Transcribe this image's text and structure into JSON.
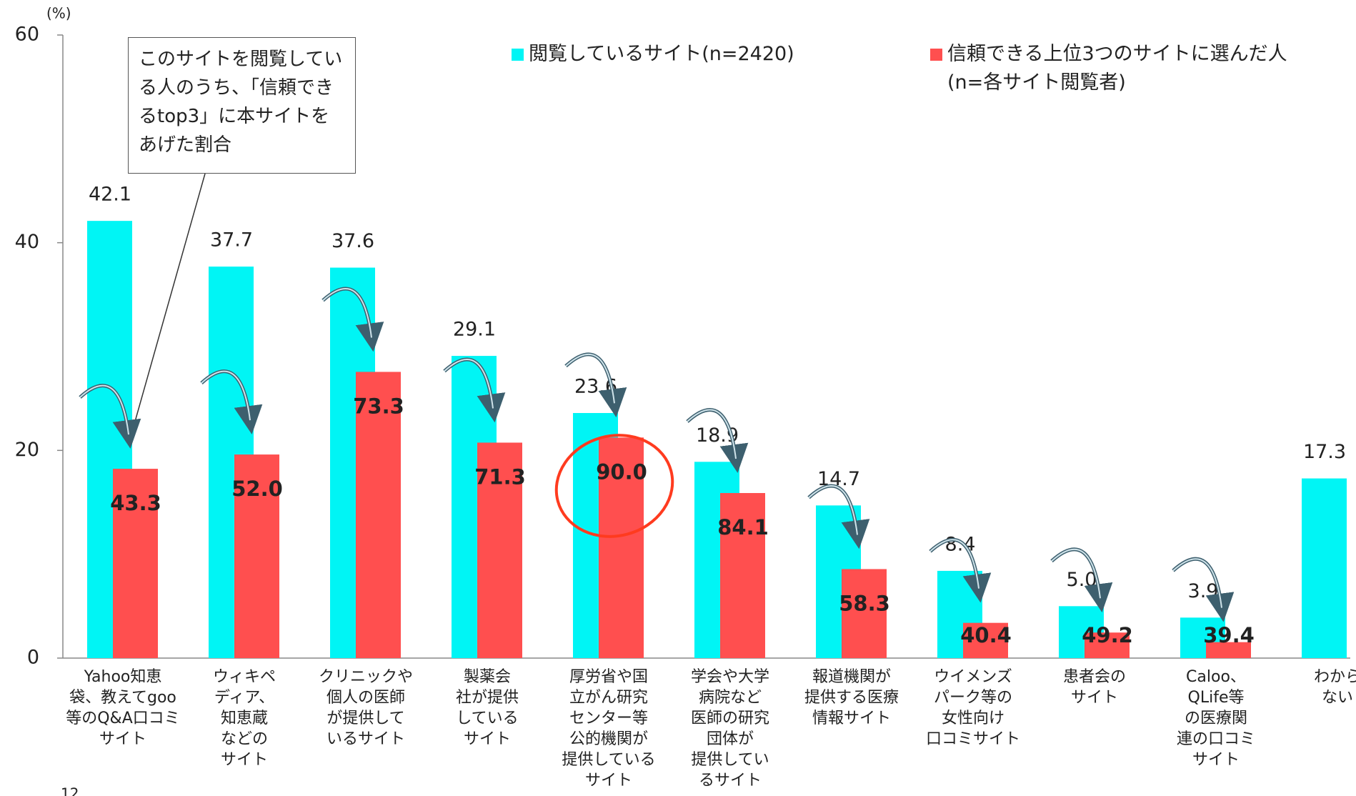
{
  "chart_data": {
    "type": "bar",
    "y_unit": "(%)",
    "annotation": "このサイトを閲覧している人のうち、「信頼できるtop3」に本サイトをあげた割合",
    "page_number": "12",
    "categories": [
      "Yahoo知恵\n袋、教えてgoo\n等のQ&A口コミ\nサイト",
      "ウィキペ\nディア、\n知恵蔵\nなどの\nサイト",
      "クリニックや\n個人の医師\nが提供して\nいるサイト",
      "製薬会\n社が提供\nしている\nサイト",
      "厚労省や国\n立がん研究\nセンター等\n公的機関が\n提供している\nサイト",
      "学会や大学\n病院など\n医師の研究\n団体が\n提供してい\nるサイト",
      "報道機関が\n提供する医療\n情報サイト",
      "ウイメンズ\nパーク等の\n女性向け\n口コミサイト",
      "患者会の\nサイト",
      "Caloo、\nQLife等\nの医療関\n連の口コミ\nサイト",
      "わから\nない"
    ],
    "series": [
      {
        "name": "閲覧しているサイト(n=2420)",
        "color": "#00f5f5",
        "values": [
          42.1,
          37.7,
          37.6,
          29.1,
          23.6,
          18.9,
          14.7,
          8.4,
          5.0,
          3.9,
          17.3
        ],
        "value_labels": [
          "42.1",
          "37.7",
          "37.6",
          "29.1",
          "23.6",
          "18.9",
          "14.7",
          "8.4",
          "5.0",
          "3.9",
          "17.3"
        ]
      },
      {
        "name": "信頼できる上位3つのサイトに選んだ人\n(n=各サイト閲覧者)",
        "color": "#ff4f4f",
        "values": [
          43.3,
          52.0,
          73.3,
          71.3,
          90.0,
          84.1,
          58.3,
          40.4,
          49.2,
          39.4,
          null
        ],
        "value_labels": [
          "43.3",
          "52.0",
          "73.3",
          "71.3",
          "90.0",
          "84.1",
          "58.3",
          "40.4",
          "49.2",
          "39.4",
          null
        ]
      }
    ],
    "ylim": [
      0,
      60
    ],
    "yticks": [
      0,
      20,
      40,
      60
    ]
  }
}
